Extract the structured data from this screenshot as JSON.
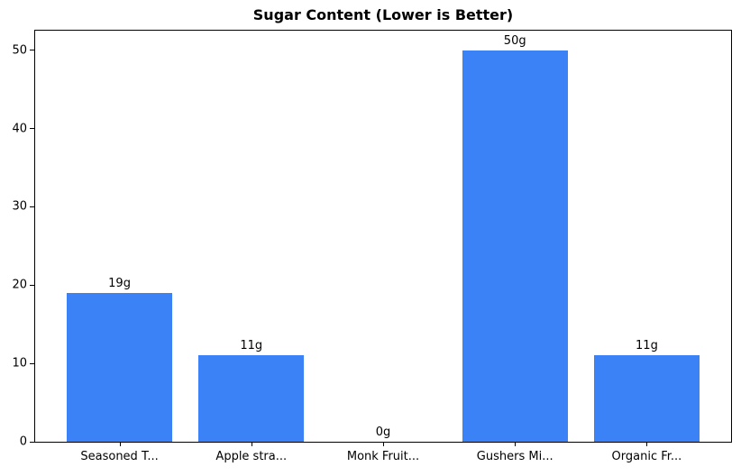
{
  "chart_data": {
    "type": "bar",
    "title": "Sugar Content (Lower is Better)",
    "categories": [
      "Seasoned T...",
      "Apple stra...",
      "Monk Fruit...",
      "Gushers Mi...",
      "Organic Fr..."
    ],
    "values": [
      19,
      11,
      0,
      50,
      11
    ],
    "bar_labels": [
      "19g",
      "11g",
      "0g",
      "50g",
      "11g"
    ],
    "xlabel": "",
    "ylabel": "",
    "ylim": [
      0,
      52.5
    ],
    "yticks": [
      0,
      10,
      20,
      30,
      40,
      50
    ],
    "bar_color": "#3b82f6",
    "axis_color": "#000000",
    "background_color": "#ffffff",
    "grid": false,
    "legend_position": "none"
  }
}
